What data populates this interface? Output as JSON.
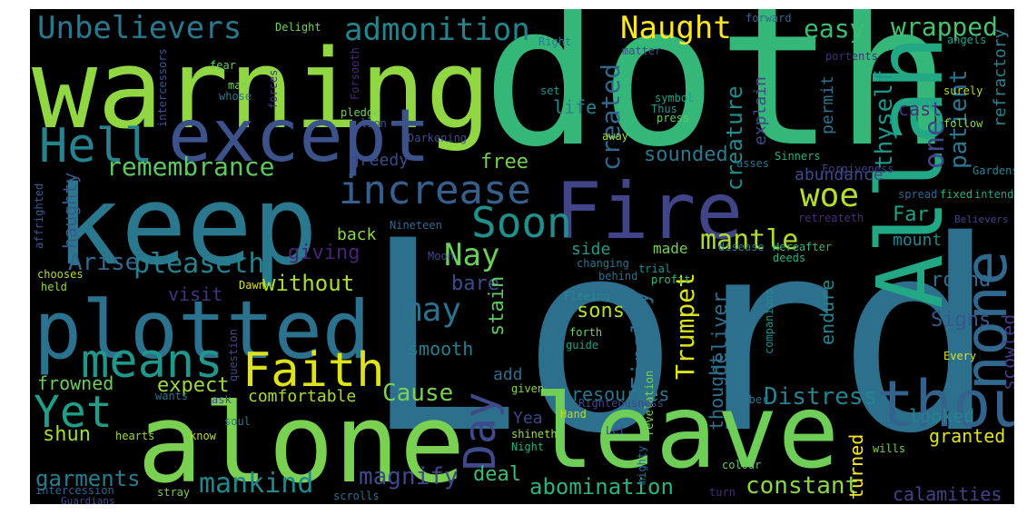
{
  "wordcloud": {
    "background": "#000000",
    "words": [
      {
        "id": "lord",
        "text": "Lord",
        "color": "#2d708e"
      },
      {
        "id": "doth",
        "text": "doth",
        "color": "#35b779"
      },
      {
        "id": "warning",
        "text": "warning",
        "color": "#90d743"
      },
      {
        "id": "keep",
        "text": "keep",
        "color": "#2a788e"
      },
      {
        "id": "alone",
        "text": "alone",
        "color": "#7ad151"
      },
      {
        "id": "leave",
        "text": "leave",
        "color": "#6ece58"
      },
      {
        "id": "plotted",
        "text": "plotted",
        "color": "#2c728e"
      },
      {
        "id": "except",
        "text": "except",
        "color": "#3b528b"
      },
      {
        "id": "fire",
        "text": "Fire",
        "color": "#414487"
      },
      {
        "id": "allah",
        "text": "Allah",
        "color": "#22a884"
      },
      {
        "id": "none",
        "text": "none",
        "color": "#31688e"
      },
      {
        "id": "thou",
        "text": "thou",
        "color": "#33638d"
      },
      {
        "id": "increase",
        "text": "increase",
        "color": "#355f8d"
      },
      {
        "id": "hell",
        "text": "Hell",
        "color": "#26828e"
      },
      {
        "id": "means",
        "text": "means",
        "color": "#1f978b"
      },
      {
        "id": "faith",
        "text": "Faith",
        "color": "#dde318"
      },
      {
        "id": "soon",
        "text": "Soon",
        "color": "#21908d"
      },
      {
        "id": "yet",
        "text": "Yet",
        "color": "#1f9e89"
      },
      {
        "id": "woe",
        "text": "woe",
        "color": "#b5de2b"
      },
      {
        "id": "day",
        "text": "Day",
        "color": "#3e4a89"
      },
      {
        "id": "unbelievers",
        "text": "Unbelievers",
        "color": "#2a788e"
      },
      {
        "id": "admonition",
        "text": "admonition",
        "color": "#25858e"
      },
      {
        "id": "naught",
        "text": "Naught",
        "color": "#fde725"
      },
      {
        "id": "remembrance",
        "text": "remembrance",
        "color": "#5ec962"
      },
      {
        "id": "pleaseth",
        "text": "pleaseth",
        "color": "#26818e"
      },
      {
        "id": "may",
        "text": "may",
        "color": "#2c728e"
      },
      {
        "id": "nay",
        "text": "Nay",
        "color": "#6ccd5a"
      },
      {
        "id": "mantle",
        "text": "mantle",
        "color": "#addc30"
      },
      {
        "id": "created",
        "text": "created",
        "color": "#31688e"
      },
      {
        "id": "creature",
        "text": "creature",
        "color": "#228b8d"
      },
      {
        "id": "easy",
        "text": "easy",
        "color": "#3fbc73"
      },
      {
        "id": "wrapped",
        "text": "wrapped",
        "color": "#48c16e"
      },
      {
        "id": "mankind",
        "text": "mankind",
        "color": "#23888e"
      },
      {
        "id": "constant",
        "text": "constant",
        "color": "#8bd646"
      },
      {
        "id": "abomination",
        "text": "abomination",
        "color": "#2db27d"
      },
      {
        "id": "trumpet",
        "text": "Trumpet",
        "color": "#dde318"
      },
      {
        "id": "distress",
        "text": "Distress",
        "color": "#26828e"
      },
      {
        "id": "cause",
        "text": "Cause",
        "color": "#7ad151"
      },
      {
        "id": "garments",
        "text": "garments",
        "color": "#287c8e"
      },
      {
        "id": "magnify",
        "text": "magnify",
        "color": "#3e4a89"
      },
      {
        "id": "sounded",
        "text": "sounded",
        "color": "#2a788e"
      },
      {
        "id": "patient",
        "text": "patient",
        "color": "#2a768e"
      },
      {
        "id": "one",
        "text": "one",
        "color": "#3e4989"
      },
      {
        "id": "thyself",
        "text": "thyself",
        "color": "#1f968b"
      },
      {
        "id": "refractory",
        "text": "refractory",
        "color": "#25848e"
      },
      {
        "id": "abundance",
        "text": "abundance",
        "color": "#3e4989"
      },
      {
        "id": "far",
        "text": "Far",
        "color": "#1fa188"
      },
      {
        "id": "giving",
        "text": "giving",
        "color": "#482475"
      },
      {
        "id": "arise",
        "text": "Arise",
        "color": "#31688e"
      },
      {
        "id": "without",
        "text": "without",
        "color": "#addc30"
      },
      {
        "id": "finally",
        "text": "Finally",
        "color": "#2e6e8e"
      },
      {
        "id": "free",
        "text": "free",
        "color": "#75d054"
      },
      {
        "id": "greedy",
        "text": "greedy",
        "color": "#3e4c8a"
      },
      {
        "id": "life",
        "text": "life",
        "color": "#25858e"
      },
      {
        "id": "haughty",
        "text": "haughty",
        "color": "#38588c"
      },
      {
        "id": "visit",
        "text": "visit",
        "color": "#46327e"
      },
      {
        "id": "bare",
        "text": "bare",
        "color": "#3e4c8a"
      },
      {
        "id": "stain",
        "text": "stain",
        "color": "#5ec962"
      },
      {
        "id": "smooth",
        "text": "smooth",
        "color": "#287d8e"
      },
      {
        "id": "expect",
        "text": "expect",
        "color": "#9fda3a"
      },
      {
        "id": "frowned",
        "text": "frowned",
        "color": "#6ccd5a"
      },
      {
        "id": "comfortable",
        "text": "comfortable",
        "color": "#a8db34"
      },
      {
        "id": "deal",
        "text": "deal",
        "color": "#3dbc74"
      },
      {
        "id": "shun",
        "text": "shun",
        "color": "#a2da37"
      },
      {
        "id": "sons",
        "text": "sons",
        "color": "#b5de2b"
      },
      {
        "id": "deliver",
        "text": "deliver",
        "color": "#2e6e8e"
      },
      {
        "id": "resources",
        "text": "resources",
        "color": "#2a788e"
      },
      {
        "id": "endure",
        "text": "endure",
        "color": "#25858e"
      },
      {
        "id": "mount",
        "text": "mount",
        "color": "#25858e"
      },
      {
        "id": "round",
        "text": "round",
        "color": "#2e6e8e"
      },
      {
        "id": "signs",
        "text": "Signs",
        "color": "#38588c"
      },
      {
        "id": "scowled",
        "text": "scowled",
        "color": "#433e85"
      },
      {
        "id": "looked",
        "text": "looked",
        "color": "#26828e"
      },
      {
        "id": "granted",
        "text": "granted",
        "color": "#dde318"
      },
      {
        "id": "calamities",
        "text": "calamities",
        "color": "#404387"
      },
      {
        "id": "turned",
        "text": "turned",
        "color": "#fde725"
      },
      {
        "id": "thought",
        "text": "thought",
        "color": "#2c718e"
      },
      {
        "id": "yea",
        "text": "Yea",
        "color": "#3f4788"
      },
      {
        "id": "add",
        "text": "add",
        "color": "#2f6c8e"
      },
      {
        "id": "explain",
        "text": "explain",
        "color": "#3e4989"
      },
      {
        "id": "cast",
        "text": "cast",
        "color": "#46307e"
      },
      {
        "id": "permit",
        "text": "permit",
        "color": "#2d718e"
      },
      {
        "id": "made",
        "text": "made",
        "color": "#75d054"
      },
      {
        "id": "side",
        "text": "side",
        "color": "#1e9c89"
      },
      {
        "id": "back",
        "text": "back",
        "color": "#8fd744"
      },
      {
        "id": "fixed",
        "text": "fixed",
        "color": "#2ab07f"
      },
      {
        "id": "spread",
        "text": "spread",
        "color": "#31688e"
      },
      {
        "id": "intend",
        "text": "intend",
        "color": "#1fa188"
      },
      {
        "id": "gardens",
        "text": "Gardens",
        "color": "#25848e"
      },
      {
        "id": "believers",
        "text": "Believers",
        "color": "#414487"
      },
      {
        "id": "hereafter",
        "text": "Hereafter",
        "color": "#32b67a"
      },
      {
        "id": "deeds",
        "text": "deeds",
        "color": "#2db27d"
      },
      {
        "id": "disease",
        "text": "disease",
        "color": "#2a788e"
      },
      {
        "id": "retreateth",
        "text": "retreateth",
        "color": "#472d7b"
      },
      {
        "id": "forgiveness",
        "text": "Forgiveness",
        "color": "#433d84"
      },
      {
        "id": "asses",
        "text": "asses",
        "color": "#2c728e"
      },
      {
        "id": "sinners",
        "text": "Sinners",
        "color": "#2ab07f"
      },
      {
        "id": "follow",
        "text": "follow",
        "color": "#8bd646"
      },
      {
        "id": "surely",
        "text": "surely",
        "color": "#b5de2b"
      },
      {
        "id": "angels",
        "text": "angels",
        "color": "#1fa088"
      },
      {
        "id": "portents",
        "text": "portents",
        "color": "#472c7a"
      },
      {
        "id": "forward",
        "text": "forward",
        "color": "#31688e"
      },
      {
        "id": "matter",
        "text": "matter",
        "color": "#3c508b"
      },
      {
        "id": "right",
        "text": "Right",
        "color": "#287c8e"
      },
      {
        "id": "delight",
        "text": "Delight",
        "color": "#73d055"
      },
      {
        "id": "forsooth",
        "text": "Forsooth",
        "color": "#482878"
      },
      {
        "id": "set",
        "text": "set",
        "color": "#20928c"
      },
      {
        "id": "symbol",
        "text": "symbol",
        "color": "#1fa088"
      },
      {
        "id": "thus",
        "text": "Thus",
        "color": "#1f988b"
      },
      {
        "id": "press",
        "text": "press",
        "color": "#65cb5e"
      },
      {
        "id": "away",
        "text": "away",
        "color": "#a0da39"
      },
      {
        "id": "darkening",
        "text": "Darkening",
        "color": "#3e4c8a"
      },
      {
        "id": "pledge",
        "text": "pledge",
        "color": "#75d054"
      },
      {
        "id": "lion",
        "text": "lion",
        "color": "#3b528b"
      },
      {
        "id": "forces",
        "text": "forces",
        "color": "#46327e"
      },
      {
        "id": "man",
        "text": "man",
        "color": "#7ad151"
      },
      {
        "id": "whose",
        "text": "whose",
        "color": "#2a778e"
      },
      {
        "id": "fear",
        "text": "fear",
        "color": "#63cb5f"
      },
      {
        "id": "intercessors",
        "text": "intercessors",
        "color": "#3b528b"
      },
      {
        "id": "affrighted",
        "text": "affrighted",
        "color": "#38598c"
      },
      {
        "id": "nineteen",
        "text": "Nineteen",
        "color": "#306a8e"
      },
      {
        "id": "moon",
        "text": "Moon",
        "color": "#3e4989"
      },
      {
        "id": "changing",
        "text": "changing",
        "color": "#2c738e"
      },
      {
        "id": "trial",
        "text": "trial",
        "color": "#21918c"
      },
      {
        "id": "profit",
        "text": "profit",
        "color": "#3bbb75"
      },
      {
        "id": "behind",
        "text": "behind",
        "color": "#2f6c8e"
      },
      {
        "id": "chooses",
        "text": "chooses",
        "color": "#b5de2b"
      },
      {
        "id": "held",
        "text": "held",
        "color": "#95d840"
      },
      {
        "id": "dawn",
        "text": "Dawn",
        "color": "#dde318"
      },
      {
        "id": "fleeing",
        "text": "Fleeing",
        "color": "#23888e"
      },
      {
        "id": "forth",
        "text": "forth",
        "color": "#77d153"
      },
      {
        "id": "guide",
        "text": "guide",
        "color": "#1f9e89"
      },
      {
        "id": "question",
        "text": "question",
        "color": "#3e4a89"
      },
      {
        "id": "revelation",
        "text": "revelation",
        "color": "#7ad151"
      },
      {
        "id": "companions",
        "text": "companions",
        "color": "#228b8d"
      },
      {
        "id": "every",
        "text": "Every",
        "color": "#dde318"
      },
      {
        "id": "ask",
        "text": "ask",
        "color": "#3e4989"
      },
      {
        "id": "wants",
        "text": "wants",
        "color": "#2c728e"
      },
      {
        "id": "given",
        "text": "given",
        "color": "#8bd646"
      },
      {
        "id": "number",
        "text": "number",
        "color": "#2c738e"
      },
      {
        "id": "righteousness",
        "text": "Righteousness",
        "color": "#3f4788"
      },
      {
        "id": "soul",
        "text": "soul",
        "color": "#2a778e"
      },
      {
        "id": "hand",
        "text": "Hand",
        "color": "#b5de2b"
      },
      {
        "id": "let",
        "text": "Let",
        "color": "#3e4c8a"
      },
      {
        "id": "shineth",
        "text": "shineth",
        "color": "#a0da39"
      },
      {
        "id": "mighty",
        "text": "mighty",
        "color": "#2f6c8e"
      },
      {
        "id": "night",
        "text": "Night",
        "color": "#2ab07f"
      },
      {
        "id": "hearts",
        "text": "hearts",
        "color": "#9fda3a"
      },
      {
        "id": "know",
        "text": "know",
        "color": "#bddf26"
      },
      {
        "id": "colour",
        "text": "colour",
        "color": "#65cb5e"
      },
      {
        "id": "turn",
        "text": "turn",
        "color": "#472d7b"
      },
      {
        "id": "wills",
        "text": "wills",
        "color": "#75d054"
      },
      {
        "id": "intercession",
        "text": "intercession",
        "color": "#33638d"
      },
      {
        "id": "guardians",
        "text": "Guardians",
        "color": "#3e4c8a"
      },
      {
        "id": "stray",
        "text": "stray",
        "color": "#7ad151"
      },
      {
        "id": "scrolls",
        "text": "scrolls",
        "color": "#2e6e8e"
      }
    ]
  }
}
